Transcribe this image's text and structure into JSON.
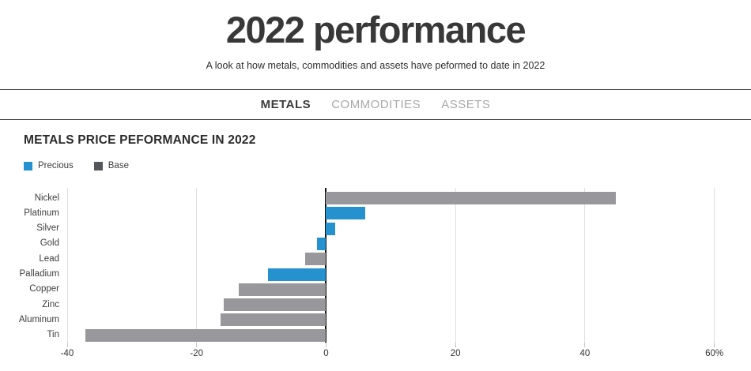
{
  "page": {
    "title": "2022 performance",
    "subtitle": "A look at how metals, commodities and assets have peformed to date in 2022"
  },
  "tabs": [
    {
      "label": "METALS",
      "active": true
    },
    {
      "label": "COMMODITIES",
      "active": false
    },
    {
      "label": "ASSETS",
      "active": false
    }
  ],
  "section": {
    "heading": "METALS PRICE PEFORMANCE IN 2022"
  },
  "legend": [
    {
      "label": "Precious",
      "color": "#2591cf"
    },
    {
      "label": "Base",
      "color": "#55565a"
    }
  ],
  "colors": {
    "precious_bar": "#2591cf",
    "base_bar": "#98989c",
    "zero_line": "#111111",
    "gridline": "#e0e0e0"
  },
  "chart_data": {
    "type": "bar",
    "orientation": "horizontal",
    "title": "METALS PRICE PEFORMANCE IN 2022",
    "unit": "%",
    "categories": [
      "Nickel",
      "Platinum",
      "Silver",
      "Gold",
      "Lead",
      "Palladium",
      "Copper",
      "Zinc",
      "Aluminum",
      "Tin"
    ],
    "values": [
      44.8,
      6.0,
      1.4,
      -1.4,
      -3.2,
      -9.0,
      -13.5,
      -15.8,
      -16.3,
      -37.2
    ],
    "series_by_bar": [
      "Base",
      "Precious",
      "Precious",
      "Precious",
      "Base",
      "Precious",
      "Base",
      "Base",
      "Base",
      "Base"
    ],
    "xlim": [
      -40,
      62
    ],
    "xticks": [
      -40,
      -20,
      0,
      20,
      40,
      60
    ],
    "xtick_labels": [
      "-40",
      "-20",
      "0",
      "20",
      "40",
      "60%"
    ],
    "grid": "vertical",
    "legend_position": "top-left"
  }
}
